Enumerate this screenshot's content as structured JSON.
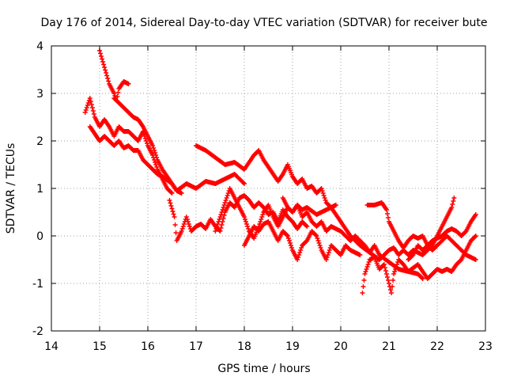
{
  "chart_data": {
    "type": "scatter",
    "title": "Day 176 of 2014, Sidereal Day-to-day VTEC variation (SDTVAR) for receiver bute",
    "xlabel": "GPS time / hours",
    "ylabel": "SDTVAR / TECUs",
    "xlim": [
      14,
      23
    ],
    "ylim": [
      -2,
      4
    ],
    "xticks": [
      "14",
      "15",
      "16",
      "17",
      "18",
      "19",
      "20",
      "21",
      "22",
      "23"
    ],
    "yticks": [
      "-2",
      "-1",
      "0",
      "1",
      "2",
      "3",
      "4"
    ],
    "grid": true,
    "marker": "plus",
    "color": "#ff0000",
    "series": [
      {
        "name": "track-1",
        "points": [
          [
            14.7,
            2.6
          ],
          [
            14.8,
            2.9
          ],
          [
            14.9,
            2.5
          ],
          [
            15.0,
            2.3
          ],
          [
            15.1,
            2.45
          ],
          [
            15.2,
            2.3
          ],
          [
            15.3,
            2.1
          ],
          [
            15.4,
            2.3
          ],
          [
            15.5,
            2.2
          ],
          [
            15.6,
            2.2
          ],
          [
            15.7,
            2.1
          ],
          [
            15.8,
            2.0
          ],
          [
            15.9,
            2.2
          ],
          [
            16.0,
            1.9
          ],
          [
            16.1,
            1.7
          ],
          [
            16.2,
            1.4
          ],
          [
            16.3,
            1.2
          ],
          [
            16.4,
            1.0
          ],
          [
            16.5,
            0.9
          ]
        ]
      },
      {
        "name": "track-2",
        "points": [
          [
            14.8,
            2.3
          ],
          [
            14.9,
            2.15
          ],
          [
            15.0,
            2.0
          ],
          [
            15.1,
            2.1
          ],
          [
            15.2,
            2.0
          ],
          [
            15.3,
            1.9
          ],
          [
            15.4,
            2.0
          ],
          [
            15.5,
            1.85
          ],
          [
            15.6,
            1.9
          ],
          [
            15.7,
            1.8
          ],
          [
            15.8,
            1.8
          ],
          [
            15.9,
            1.6
          ],
          [
            16.0,
            1.5
          ],
          [
            16.1,
            1.4
          ],
          [
            16.2,
            1.3
          ],
          [
            16.3,
            1.25
          ],
          [
            16.5,
            1.1
          ],
          [
            16.6,
            0.95
          ],
          [
            16.8,
            1.1
          ],
          [
            17.0,
            1.0
          ],
          [
            17.2,
            1.15
          ],
          [
            17.4,
            1.1
          ],
          [
            17.6,
            1.2
          ],
          [
            17.8,
            1.3
          ],
          [
            18.0,
            1.1
          ]
        ]
      },
      {
        "name": "track-3",
        "points": [
          [
            15.0,
            3.9
          ],
          [
            15.1,
            3.55
          ],
          [
            15.2,
            3.2
          ],
          [
            15.3,
            3.0
          ],
          [
            15.35,
            2.85
          ],
          [
            15.4,
            3.1
          ],
          [
            15.5,
            3.25
          ],
          [
            15.6,
            3.2
          ]
        ]
      },
      {
        "name": "track-4",
        "points": [
          [
            15.3,
            2.9
          ],
          [
            15.4,
            2.8
          ],
          [
            15.5,
            2.7
          ],
          [
            15.6,
            2.6
          ],
          [
            15.7,
            2.5
          ],
          [
            15.8,
            2.45
          ],
          [
            15.9,
            2.3
          ],
          [
            16.0,
            2.1
          ],
          [
            16.1,
            1.9
          ],
          [
            16.2,
            1.6
          ],
          [
            16.3,
            1.4
          ],
          [
            16.4,
            1.25
          ],
          [
            16.5,
            1.1
          ],
          [
            16.6,
            0.95
          ],
          [
            16.7,
            0.9
          ]
        ]
      },
      {
        "name": "track-5",
        "points": [
          [
            17.0,
            1.9
          ],
          [
            17.2,
            1.8
          ],
          [
            17.4,
            1.65
          ],
          [
            17.6,
            1.5
          ],
          [
            17.8,
            1.55
          ],
          [
            18.0,
            1.4
          ],
          [
            18.2,
            1.7
          ],
          [
            18.3,
            1.8
          ],
          [
            18.4,
            1.6
          ],
          [
            18.5,
            1.45
          ],
          [
            18.6,
            1.3
          ],
          [
            18.7,
            1.15
          ],
          [
            18.8,
            1.3
          ],
          [
            18.9,
            1.5
          ],
          [
            19.0,
            1.25
          ],
          [
            19.1,
            1.1
          ],
          [
            19.2,
            1.2
          ],
          [
            19.3,
            1.0
          ],
          [
            19.4,
            1.05
          ],
          [
            19.5,
            0.9
          ],
          [
            19.6,
            1.0
          ],
          [
            19.7,
            0.7
          ],
          [
            19.8,
            0.6
          ],
          [
            20.0,
            0.3
          ],
          [
            20.2,
            0.0
          ],
          [
            20.4,
            -0.2
          ],
          [
            20.6,
            -0.35
          ],
          [
            20.8,
            -0.5
          ]
        ]
      },
      {
        "name": "track-6",
        "points": [
          [
            16.45,
            0.75
          ],
          [
            16.55,
            0.4
          ],
          [
            16.6,
            -0.1
          ],
          [
            16.7,
            0.1
          ],
          [
            16.8,
            0.4
          ],
          [
            16.9,
            0.1
          ],
          [
            17.0,
            0.2
          ],
          [
            17.1,
            0.25
          ],
          [
            17.2,
            0.15
          ],
          [
            17.3,
            0.35
          ],
          [
            17.4,
            0.2
          ],
          [
            17.5,
            0.1
          ],
          [
            17.6,
            0.5
          ],
          [
            17.7,
            0.7
          ],
          [
            17.8,
            0.6
          ],
          [
            17.9,
            0.8
          ],
          [
            18.0,
            0.85
          ],
          [
            18.1,
            0.75
          ],
          [
            18.2,
            0.6
          ],
          [
            18.3,
            0.7
          ],
          [
            18.4,
            0.6
          ],
          [
            18.5,
            0.45
          ],
          [
            18.6,
            0.5
          ],
          [
            18.7,
            0.3
          ],
          [
            18.8,
            0.55
          ],
          [
            18.9,
            0.4
          ],
          [
            19.0,
            0.3
          ],
          [
            19.1,
            0.15
          ],
          [
            19.2,
            0.3
          ],
          [
            19.3,
            0.2
          ]
        ]
      },
      {
        "name": "track-7",
        "points": [
          [
            17.4,
            0.1
          ],
          [
            17.5,
            0.4
          ],
          [
            17.6,
            0.7
          ],
          [
            17.7,
            1.0
          ],
          [
            17.8,
            0.8
          ],
          [
            17.9,
            0.6
          ],
          [
            18.0,
            0.4
          ],
          [
            18.1,
            0.1
          ],
          [
            18.2,
            -0.05
          ],
          [
            18.3,
            0.2
          ],
          [
            18.4,
            0.5
          ],
          [
            18.5,
            0.65
          ],
          [
            18.6,
            0.4
          ],
          [
            18.7,
            0.2
          ],
          [
            18.8,
            0.4
          ],
          [
            18.9,
            0.6
          ],
          [
            19.0,
            0.5
          ],
          [
            19.1,
            0.65
          ],
          [
            19.2,
            0.55
          ],
          [
            19.3,
            0.6
          ],
          [
            19.5,
            0.45
          ],
          [
            19.6,
            0.5
          ],
          [
            19.8,
            0.6
          ],
          [
            19.9,
            0.65
          ]
        ]
      },
      {
        "name": "track-8",
        "points": [
          [
            18.0,
            -0.2
          ],
          [
            18.1,
            0.0
          ],
          [
            18.2,
            0.2
          ],
          [
            18.3,
            0.1
          ],
          [
            18.4,
            0.25
          ],
          [
            18.5,
            0.3
          ],
          [
            18.6,
            0.1
          ],
          [
            18.7,
            -0.1
          ],
          [
            18.8,
            0.1
          ],
          [
            18.9,
            0.0
          ],
          [
            19.0,
            -0.3
          ],
          [
            19.1,
            -0.5
          ],
          [
            19.2,
            -0.2
          ],
          [
            19.3,
            -0.1
          ],
          [
            19.4,
            0.1
          ],
          [
            19.5,
            0.0
          ],
          [
            19.6,
            -0.3
          ],
          [
            19.7,
            -0.5
          ],
          [
            19.8,
            -0.2
          ],
          [
            19.9,
            -0.3
          ],
          [
            20.0,
            -0.4
          ],
          [
            20.1,
            -0.2
          ],
          [
            20.2,
            -0.3
          ],
          [
            20.4,
            -0.4
          ]
        ]
      },
      {
        "name": "track-9",
        "points": [
          [
            18.8,
            0.8
          ],
          [
            18.9,
            0.6
          ],
          [
            19.0,
            0.5
          ],
          [
            19.1,
            0.65
          ],
          [
            19.2,
            0.4
          ],
          [
            19.3,
            0.5
          ],
          [
            19.4,
            0.3
          ],
          [
            19.5,
            0.2
          ],
          [
            19.6,
            0.3
          ],
          [
            19.7,
            0.1
          ],
          [
            19.8,
            0.2
          ],
          [
            20.0,
            0.1
          ],
          [
            20.2,
            -0.1
          ],
          [
            20.3,
            0.0
          ],
          [
            20.5,
            -0.2
          ],
          [
            20.6,
            -0.35
          ],
          [
            20.7,
            -0.2
          ],
          [
            20.8,
            -0.4
          ],
          [
            21.0,
            -0.55
          ],
          [
            21.2,
            -0.7
          ],
          [
            21.4,
            -0.75
          ],
          [
            21.6,
            -0.8
          ],
          [
            21.7,
            -0.9
          ]
        ]
      },
      {
        "name": "track-10",
        "points": [
          [
            20.55,
            0.65
          ],
          [
            20.7,
            0.65
          ],
          [
            20.85,
            0.7
          ],
          [
            20.95,
            0.55
          ],
          [
            21.0,
            0.3
          ],
          [
            21.1,
            0.1
          ],
          [
            21.2,
            -0.1
          ],
          [
            21.3,
            -0.25
          ],
          [
            21.4,
            -0.1
          ],
          [
            21.5,
            0.0
          ],
          [
            21.6,
            -0.05
          ],
          [
            21.7,
            0.0
          ],
          [
            21.8,
            -0.2
          ],
          [
            21.9,
            -0.3
          ],
          [
            22.0,
            -0.2
          ],
          [
            22.2,
            0.0
          ],
          [
            22.4,
            -0.2
          ],
          [
            22.6,
            -0.4
          ],
          [
            22.8,
            -0.5
          ]
        ]
      },
      {
        "name": "track-11",
        "points": [
          [
            20.45,
            -1.2
          ],
          [
            20.5,
            -0.8
          ],
          [
            20.6,
            -0.5
          ],
          [
            20.7,
            -0.45
          ],
          [
            20.8,
            -0.7
          ],
          [
            20.9,
            -0.6
          ],
          [
            21.0,
            -1.0
          ],
          [
            21.05,
            -1.2
          ],
          [
            21.1,
            -0.8
          ],
          [
            21.2,
            -0.5
          ],
          [
            21.3,
            -0.6
          ],
          [
            21.4,
            -0.75
          ],
          [
            21.6,
            -0.6
          ],
          [
            21.8,
            -0.9
          ],
          [
            21.9,
            -0.8
          ],
          [
            22.0,
            -0.7
          ],
          [
            22.1,
            -0.75
          ],
          [
            22.2,
            -0.7
          ],
          [
            22.3,
            -0.75
          ],
          [
            22.4,
            -0.6
          ],
          [
            22.5,
            -0.5
          ],
          [
            22.6,
            -0.3
          ],
          [
            22.7,
            -0.1
          ],
          [
            22.8,
            0.0
          ]
        ]
      },
      {
        "name": "track-12",
        "points": [
          [
            20.8,
            -0.5
          ],
          [
            20.9,
            -0.4
          ],
          [
            21.0,
            -0.3
          ],
          [
            21.1,
            -0.25
          ],
          [
            21.2,
            -0.4
          ],
          [
            21.3,
            -0.3
          ],
          [
            21.4,
            -0.4
          ],
          [
            21.5,
            -0.3
          ],
          [
            21.6,
            -0.35
          ],
          [
            21.7,
            -0.4
          ],
          [
            21.8,
            -0.3
          ],
          [
            21.9,
            -0.2
          ],
          [
            22.0,
            0.0
          ],
          [
            22.1,
            0.2
          ],
          [
            22.2,
            0.4
          ],
          [
            22.3,
            0.6
          ],
          [
            22.35,
            0.8
          ]
        ]
      },
      {
        "name": "track-13",
        "points": [
          [
            21.4,
            -0.5
          ],
          [
            21.5,
            -0.4
          ],
          [
            21.6,
            -0.2
          ],
          [
            21.7,
            -0.3
          ],
          [
            21.8,
            -0.2
          ],
          [
            21.9,
            -0.1
          ],
          [
            22.0,
            -0.05
          ],
          [
            22.1,
            0.0
          ],
          [
            22.2,
            0.1
          ],
          [
            22.3,
            0.15
          ],
          [
            22.4,
            0.1
          ],
          [
            22.5,
            0.0
          ],
          [
            22.6,
            0.1
          ],
          [
            22.7,
            0.3
          ],
          [
            22.8,
            0.45
          ]
        ]
      }
    ]
  }
}
